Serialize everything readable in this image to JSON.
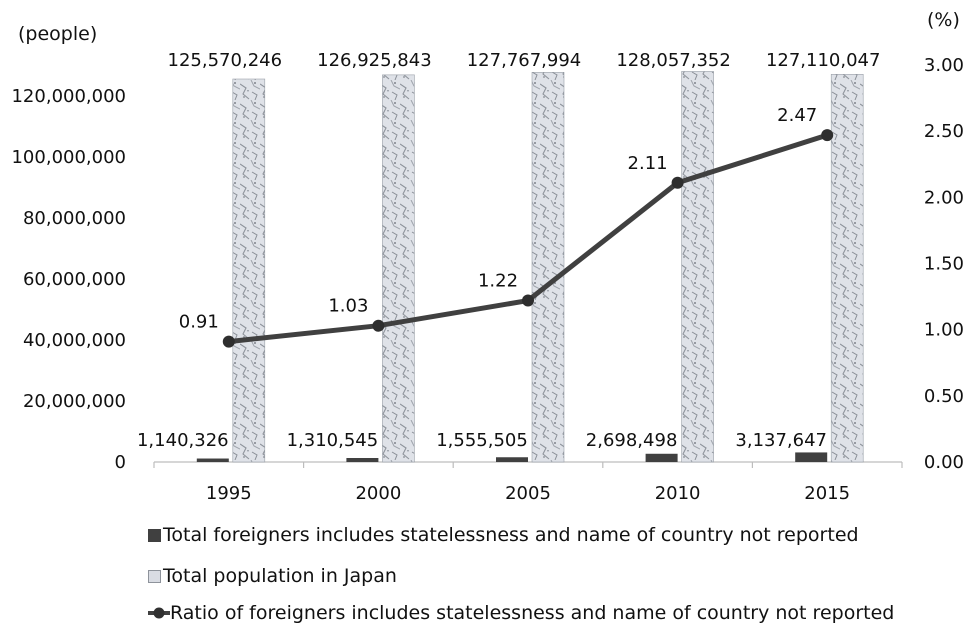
{
  "chart_data": {
    "type": "bar",
    "categories": [
      "1995",
      "2000",
      "2005",
      "2010",
      "2015"
    ],
    "left_axis": {
      "unit_label": "(people)",
      "ylim": [
        0,
        120000000
      ],
      "ticks": [
        "0",
        "20,000,000",
        "40,000,000",
        "60,000,000",
        "80,000,000",
        "100,000,000",
        "120,000,000"
      ]
    },
    "right_axis": {
      "unit_label": "(%)",
      "ylim": [
        0,
        3.0
      ],
      "ticks": [
        "0.00",
        "0.50",
        "1.00",
        "1.50",
        "2.00",
        "2.50",
        "3.00"
      ]
    },
    "series": [
      {
        "name": "Total foreigners includes statelessness and name of country not reported",
        "kind": "bar",
        "axis": "left",
        "values": [
          1140326,
          1310545,
          1555505,
          2698498,
          3137647
        ],
        "labels": [
          "1,140,326",
          "1,310,545",
          "1,555,505",
          "2,698,498",
          "3,137,647"
        ],
        "color": "#404040"
      },
      {
        "name": "Total population in Japan",
        "kind": "bar",
        "axis": "left",
        "values": [
          125570246,
          126925843,
          127767994,
          128057352,
          127110047
        ],
        "labels": [
          "125,570,246",
          "126,925,843",
          "127,767,994",
          "128,057,352",
          "127,110,047"
        ],
        "color": "#d9dce3"
      },
      {
        "name": "Ratio of foreigners includes statelessness and name of country not reported",
        "kind": "line",
        "axis": "right",
        "values": [
          0.91,
          1.03,
          1.22,
          2.11,
          2.47
        ],
        "labels": [
          "0.91",
          "1.03",
          "1.22",
          "2.11",
          "2.47"
        ],
        "color": "#404040"
      }
    ],
    "grid": false,
    "legend_position": "bottom"
  }
}
